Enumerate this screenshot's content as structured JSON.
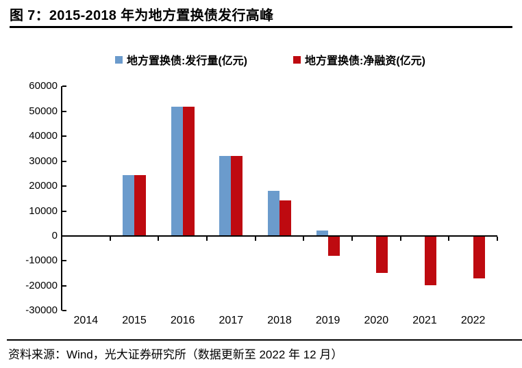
{
  "header": {
    "title": "图 7：2015-2018 年为地方置换债发行高峰"
  },
  "legend": {
    "issuance_label": "地方置换债:发行量(亿元)",
    "net_label": "地方置换债:净融资(亿元)"
  },
  "footer": {
    "source": "资料来源：Wind，光大证券研究所（数据更新至 2022 年 12 月）"
  },
  "colors": {
    "issuance_blue": "#6B9BCC",
    "net_red": "#BE0A10",
    "axis": "#000000"
  },
  "chart_data": {
    "type": "bar",
    "title": "图 7：2015-2018 年为地方置换债发行高峰",
    "categories": [
      "2014",
      "2015",
      "2016",
      "2017",
      "2018",
      "2019",
      "2020",
      "2021",
      "2022"
    ],
    "series": [
      {
        "name": "地方置换债:发行量(亿元)",
        "color": "#6B9BCC",
        "values": [
          0,
          24400,
          51800,
          32200,
          18100,
          2100,
          0,
          0,
          0
        ]
      },
      {
        "name": "地方置换债:净融资(亿元)",
        "color": "#BE0A10",
        "values": [
          0,
          24400,
          51800,
          32200,
          14200,
          -7900,
          -14800,
          -19800,
          -17000
        ]
      }
    ],
    "ylim": [
      -30000,
      60000
    ],
    "ytick_step": 10000,
    "yticks": [
      "60000",
      "50000",
      "40000",
      "30000",
      "20000",
      "10000",
      "0",
      "-10000",
      "-20000",
      "-30000"
    ],
    "xlabel": "",
    "ylabel": "",
    "grid": false,
    "legend_position": "top"
  }
}
